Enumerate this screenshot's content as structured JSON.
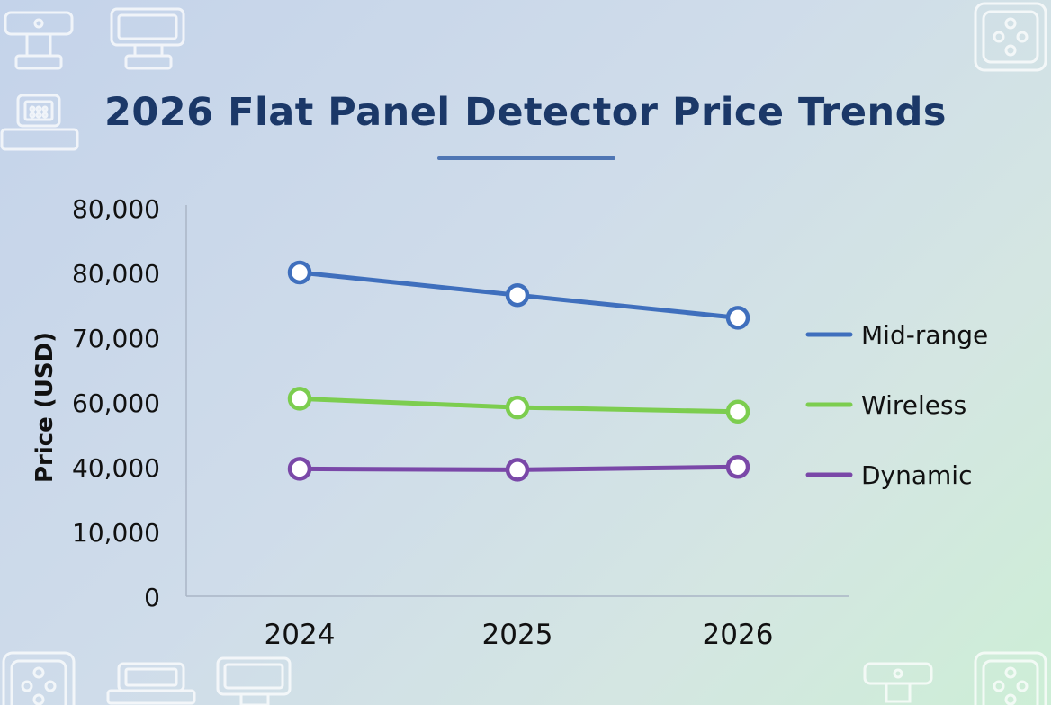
{
  "title": "2026 Flat Panel Detector Price Trends",
  "colors": {
    "title": "#1b3868",
    "axis": "#aab5c6",
    "mid_range": "#3f6fbd",
    "wireless": "#7ccd4f",
    "dynamic": "#7a48a8",
    "deco": "#ffffff"
  },
  "decor_icons": [
    "detector-stand-icon",
    "detector-panel-icon",
    "detector-grid-icon",
    "detector-dice-icon"
  ],
  "chart_data": {
    "type": "line",
    "title": "2026 Flat Panel Detector Price Trends",
    "ylabel": "Price (USD)",
    "xlabel": "",
    "categories": [
      "2024",
      "2025",
      "2026"
    ],
    "y_tick_labels": [
      "0",
      "10,000",
      "40,000",
      "60,000",
      "70,000",
      "80,000",
      "80,000"
    ],
    "series": [
      {
        "name": "Mid-range",
        "color": "#3f6fbd",
        "values": [
          80000,
          76500,
          73000
        ]
      },
      {
        "name": "Wireless",
        "color": "#7ccd4f",
        "values": [
          60500,
          58300,
          57000
        ]
      },
      {
        "name": "Dynamic",
        "color": "#7a48a8",
        "values": [
          39000,
          38600,
          39900
        ]
      }
    ],
    "legend": "right",
    "grid": false
  }
}
